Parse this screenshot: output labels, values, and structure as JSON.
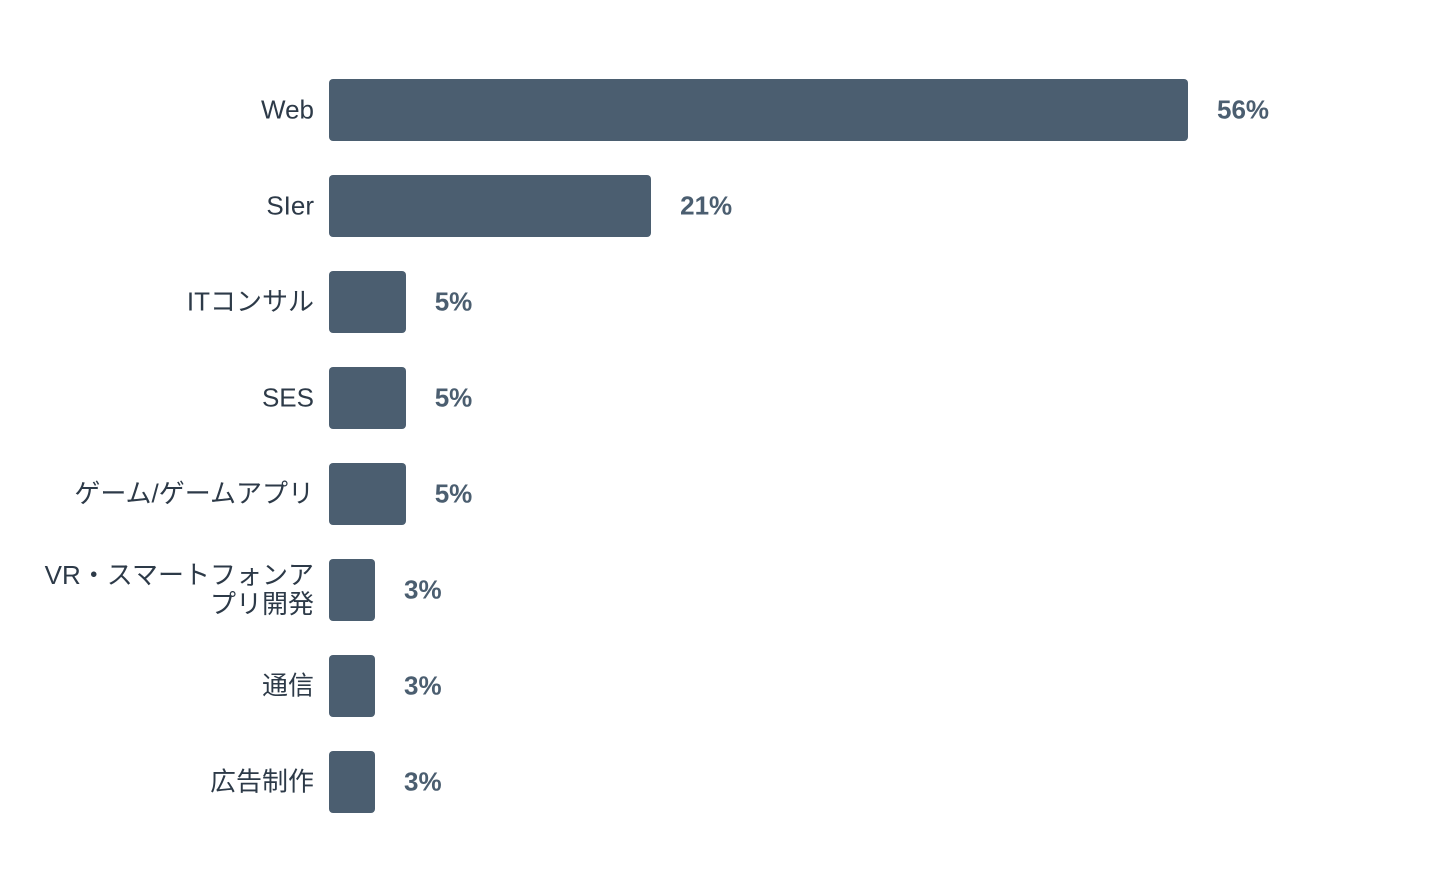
{
  "chart_data": {
    "type": "bar",
    "orientation": "horizontal",
    "color": "#4b5e70",
    "categories": [
      "Web",
      "SIer",
      "ITコンサル",
      "SES",
      "ゲーム/ゲームアプリ",
      "VR・スマートフォンアプリ開発",
      "通信",
      "広告制作"
    ],
    "values": [
      56,
      21,
      5,
      5,
      5,
      3,
      3,
      3
    ],
    "value_labels": [
      "56%",
      "21%",
      "5%",
      "5%",
      "5%",
      "3%",
      "3%",
      "3%"
    ]
  }
}
